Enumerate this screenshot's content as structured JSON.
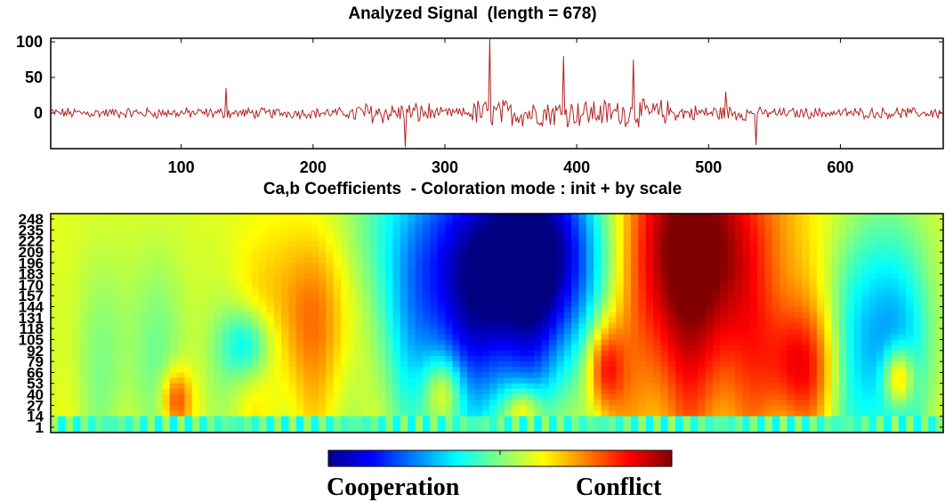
{
  "chart_data": [
    {
      "type": "line",
      "title": "Analyzed Signal  (length = 678)",
      "xlim": [
        1,
        678
      ],
      "ylim": [
        -50,
        105
      ],
      "x_ticks": [
        100,
        200,
        300,
        400,
        500,
        600
      ],
      "y_ticks": [
        0,
        50,
        100
      ],
      "series_color": "#b22222",
      "peaks": [
        {
          "x": 334,
          "y": 105
        },
        {
          "x": 390,
          "y": 80
        },
        {
          "x": 443,
          "y": 75
        },
        {
          "x": 134,
          "y": 35
        },
        {
          "x": 513,
          "y": 30
        },
        {
          "x": 536,
          "y": -45
        },
        {
          "x": 270,
          "y": -48
        }
      ]
    },
    {
      "type": "heatmap",
      "title": "Ca,b Coefficients  - Coloration mode : init + by scale",
      "xlim": [
        1,
        678
      ],
      "y_ticks": [
        "248",
        "235",
        "222",
        "209",
        "196",
        "183",
        "170",
        "157",
        "144",
        "131",
        "118",
        "105",
        "92",
        "79",
        "66",
        "53",
        "40",
        "27",
        "14",
        "1"
      ],
      "colormap": "jet",
      "colorbar_labels": {
        "low": "Cooperation",
        "high": "Conflict"
      }
    }
  ]
}
